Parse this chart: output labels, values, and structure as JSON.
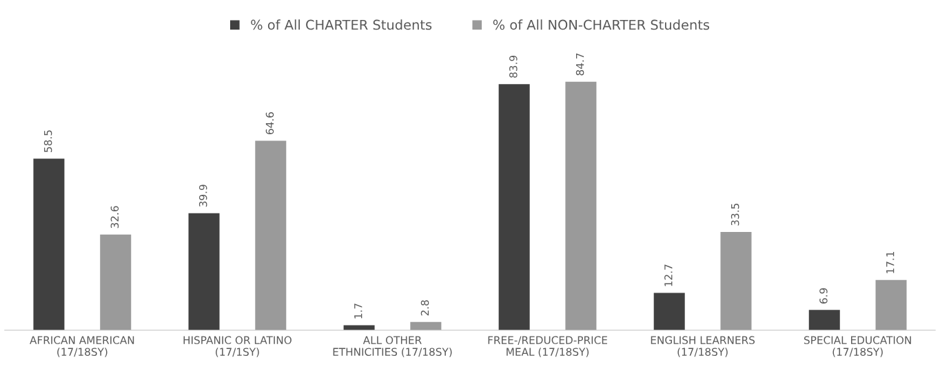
{
  "chart_data": {
    "type": "bar",
    "categories": [
      "AFRICAN AMERICAN\n(17/18SY)",
      "HISPANIC OR LATINO\n(17/1SY)",
      "ALL OTHER\nETHNICITIES (17/18SY)",
      "FREE-/REDUCED-PRICE\nMEAL (17/18SY)",
      "ENGLISH LEARNERS\n(17/18SY)",
      "SPECIAL EDUCATION\n(17/18SY)"
    ],
    "series": [
      {
        "name": "% of All CHARTER Students",
        "color": "#404040",
        "values": [
          58.5,
          39.9,
          1.7,
          83.9,
          12.7,
          6.9
        ]
      },
      {
        "name": "% of All NON-CHARTER Students",
        "color": "#9a9a9a",
        "values": [
          32.6,
          64.6,
          2.8,
          84.7,
          33.5,
          17.1
        ]
      }
    ],
    "data_labels": true,
    "legend": "top",
    "grid": false
  }
}
